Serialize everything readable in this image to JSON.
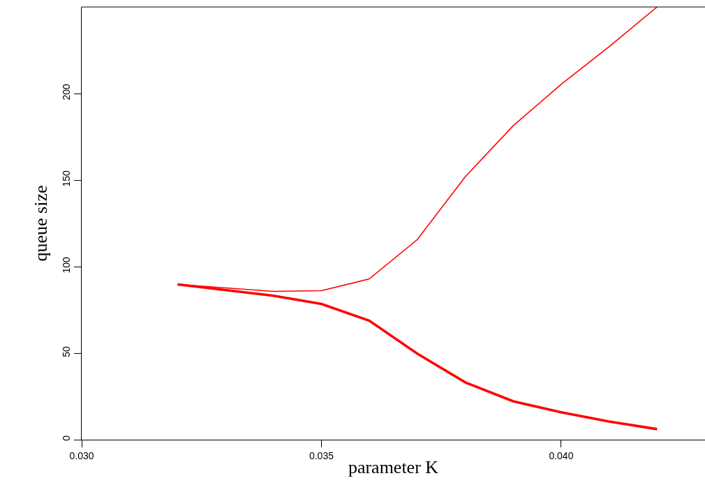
{
  "chart_data": {
    "type": "line",
    "xlabel": "parameter K",
    "ylabel": "queue size",
    "x": [
      0.032,
      0.034,
      0.035,
      0.036,
      0.037,
      0.038,
      0.039,
      0.04,
      0.041,
      0.042
    ],
    "series": [
      {
        "color": "#ff0000",
        "values": [
          89.7,
          85.7,
          86.1,
          92.9,
          115.6,
          151.9,
          181.4,
          205.3,
          227.1,
          250
        ]
      },
      {
        "color": "#ff0000",
        "values": [
          89.7,
          83.2,
          78.4,
          68.7,
          49.7,
          33.1,
          22.2,
          15.8,
          10.5,
          6.1
        ]
      }
    ],
    "xlim": [
      0.03,
      0.043
    ],
    "ylim": [
      0,
      250
    ],
    "xticks": [
      {
        "value": 0.03,
        "label": "0.030"
      },
      {
        "value": 0.035,
        "label": "0.035"
      },
      {
        "value": 0.04,
        "label": "0.040"
      }
    ],
    "yticks": [
      0,
      50,
      100,
      150,
      200
    ],
    "marker": "none",
    "line_style": "solid"
  }
}
